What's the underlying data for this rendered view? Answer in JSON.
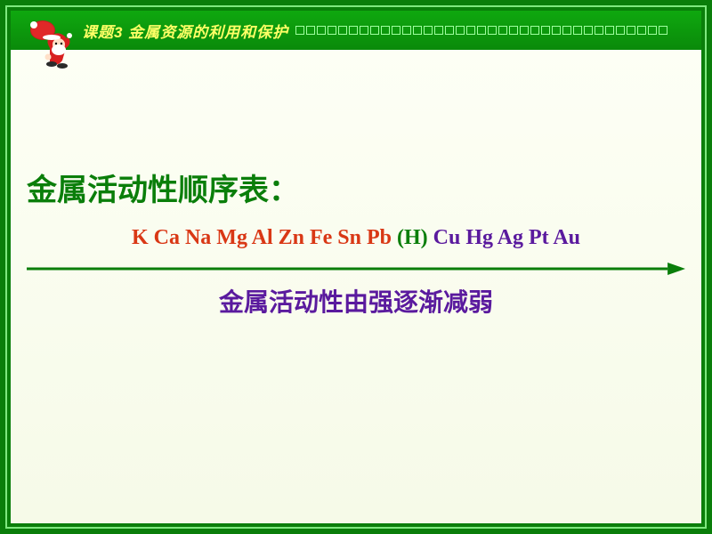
{
  "header": {
    "title": "课题3 金属资源的利用和保护",
    "title_color": "#ffff66",
    "bar_gradient": [
      "#0fa80f",
      "#0a8a0a"
    ],
    "square_border": "#9fff9f",
    "square_count": 35
  },
  "content": {
    "background_gradient": [
      "#fdfff5",
      "#f6fae8"
    ],
    "main_title": "金属活动性顺序表：",
    "main_title_color": "#0a7e0a",
    "main_title_fontsize": 34,
    "elements_before_h": "K  Ca  Na  Mg  Al  Zn  Fe  Sn  Pb",
    "elements_h": "(H)",
    "elements_after_h": "Cu  Hg  Ag  Pt  Au",
    "before_h_color": "#d93815",
    "h_color": "#0a7e0a",
    "after_h_color": "#5a1a9e",
    "elements_fontsize": 24,
    "arrow_color": "#0a7e0a",
    "subtitle": "金属活动性由强逐渐减弱",
    "subtitle_color": "#5a1a9e",
    "subtitle_fontsize": 28
  },
  "frame": {
    "outer_bg": "#0a7e0a",
    "border_color": "#7ee87e"
  }
}
